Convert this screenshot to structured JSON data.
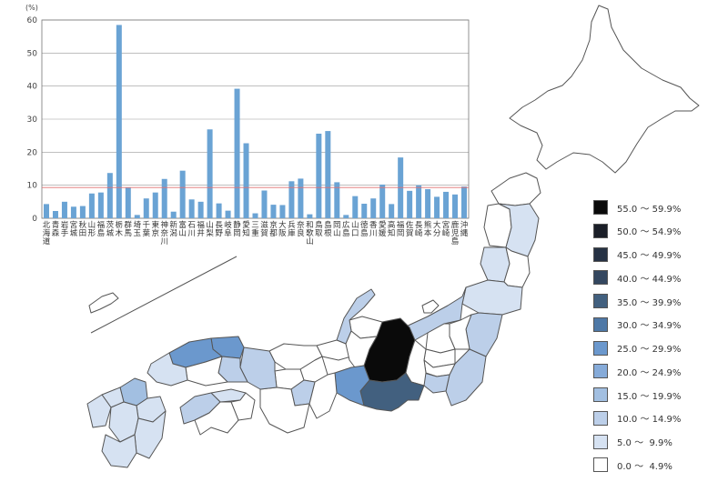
{
  "chart_data": {
    "type": "bar",
    "unit_label": "(%)",
    "ylim": [
      0,
      60
    ],
    "yticks": [
      0,
      10,
      20,
      30,
      40,
      50,
      60
    ],
    "reference_line": 9.3,
    "categories": [
      "北海道",
      "青森",
      "岩手",
      "宮城",
      "秋田",
      "山形",
      "福島",
      "茨城",
      "栃木",
      "群馬",
      "埼玉",
      "千葉",
      "東京",
      "神奈川",
      "新潟",
      "富山",
      "石川",
      "福井",
      "山梨",
      "長野",
      "岐阜",
      "静岡",
      "愛知",
      "三重",
      "滋賀",
      "京都",
      "大阪",
      "兵庫",
      "奈良",
      "和歌山",
      "鳥取",
      "島根",
      "岡山",
      "広島",
      "山口",
      "徳島",
      "香川",
      "愛媛",
      "高知",
      "福岡",
      "佐賀",
      "長崎",
      "熊本",
      "大分",
      "宮崎",
      "鹿児島",
      "沖縄"
    ],
    "values": [
      4.3,
      2.2,
      5.0,
      3.5,
      3.7,
      7.5,
      7.8,
      13.7,
      58.5,
      9.3,
      1.0,
      6.0,
      7.8,
      11.9,
      2.0,
      14.4,
      5.7,
      5.0,
      26.9,
      4.5,
      2.3,
      39.2,
      22.7,
      1.5,
      8.4,
      4.1,
      4.0,
      11.2,
      12.0,
      1.2,
      25.6,
      26.4,
      10.9,
      1.0,
      6.7,
      4.4,
      6.0,
      10.2,
      4.3,
      18.4,
      8.3,
      10.0,
      8.8,
      6.5,
      8.0,
      7.2,
      9.6
    ],
    "bar_color": "#6aa3d4",
    "reference_color": "#e07070"
  },
  "map": {
    "type": "choropleth",
    "region": "Japan prefectures",
    "legend": [
      {
        "label": "55.0 ～ 59.9%",
        "color": "#0a0a0a"
      },
      {
        "label": "50.0 ～ 54.9%",
        "color": "#1b1f28"
      },
      {
        "label": "45.0 ～ 49.9%",
        "color": "#263244"
      },
      {
        "label": "40.0 ～ 44.9%",
        "color": "#34475f"
      },
      {
        "label": "35.0 ～ 39.9%",
        "color": "#42607f"
      },
      {
        "label": "30.0 ～ 34.9%",
        "color": "#4e78a6"
      },
      {
        "label": "25.0 ～ 29.9%",
        "color": "#6b98cd"
      },
      {
        "label": "20.0 ～ 24.9%",
        "color": "#86abd9"
      },
      {
        "label": "15.0 ～ 19.9%",
        "color": "#a2bfe1"
      },
      {
        "label": "10.0 ～ 14.9%",
        "color": "#bccfe9"
      },
      {
        "label": "5.0 ～  9.9%",
        "color": "#d6e2f2"
      },
      {
        "label": "0.0 ～  4.9%",
        "color": "#ffffff"
      }
    ]
  }
}
